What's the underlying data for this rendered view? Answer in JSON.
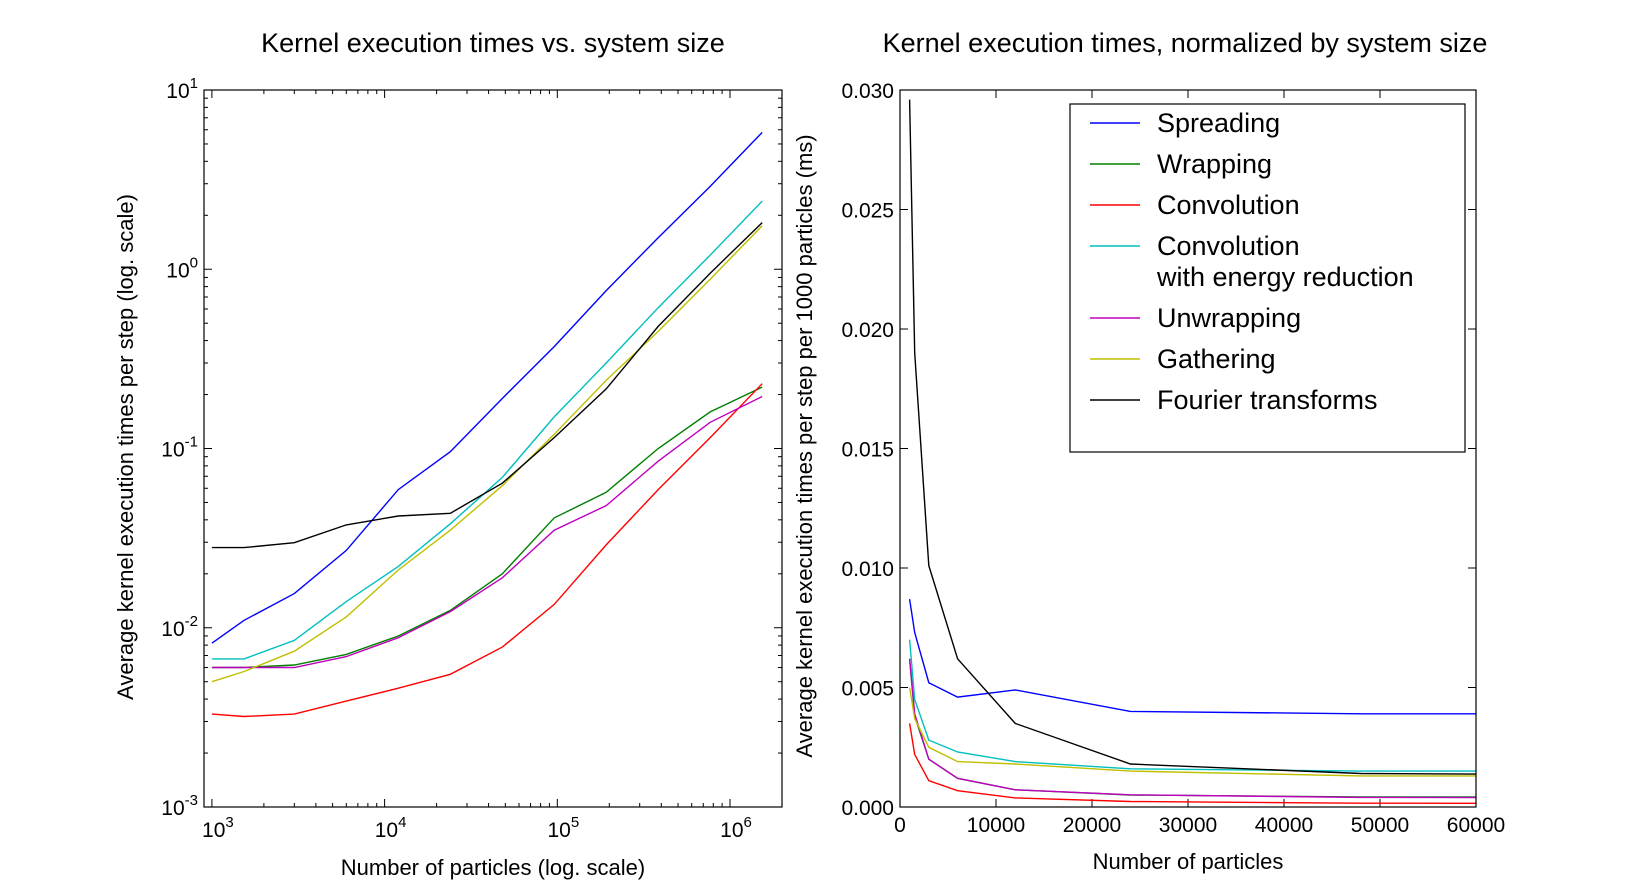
{
  "chart_data": [
    {
      "type": "line",
      "title": "Kernel execution times vs. system size",
      "xlabel": "Number of particles (log. scale)",
      "ylabel": "Average kernel execution times per step (log. scale)",
      "xscale": "log",
      "yscale": "log",
      "xlim": [
        900,
        2000000
      ],
      "ylim": [
        0.001,
        10
      ],
      "xticks": [
        {
          "value": 1000,
          "base": "10",
          "exp": "3"
        },
        {
          "value": 10000,
          "base": "10",
          "exp": "4"
        },
        {
          "value": 100000,
          "base": "10",
          "exp": "5"
        },
        {
          "value": 1000000,
          "base": "10",
          "exp": "6"
        }
      ],
      "yticks": [
        {
          "value": 0.001,
          "base": "10",
          "exp": "-3"
        },
        {
          "value": 0.01,
          "base": "10",
          "exp": "-2"
        },
        {
          "value": 0.1,
          "base": "10",
          "exp": "-1"
        },
        {
          "value": 1,
          "base": "10",
          "exp": "0"
        },
        {
          "value": 10,
          "base": "10",
          "exp": "1"
        }
      ],
      "grid": false,
      "legend": "none",
      "x": [
        1000,
        1536,
        3000,
        6000,
        12000,
        24000,
        48000,
        96000,
        192000,
        384000,
        768000,
        1536000
      ],
      "series": [
        {
          "name": "Spreading",
          "color": "#0000ff",
          "values": [
            0.0082,
            0.011,
            0.0155,
            0.027,
            0.059,
            0.096,
            0.19,
            0.37,
            0.76,
            1.5,
            2.9,
            5.8
          ]
        },
        {
          "name": "Wrapping",
          "color": "#008000",
          "values": [
            0.006,
            0.006,
            0.0062,
            0.0071,
            0.009,
            0.0125,
            0.02,
            0.041,
            0.057,
            0.1,
            0.16,
            0.22
          ]
        },
        {
          "name": "Convolution",
          "color": "#ff0000",
          "values": [
            0.0033,
            0.0032,
            0.0033,
            0.0039,
            0.0046,
            0.0055,
            0.0078,
            0.0135,
            0.029,
            0.059,
            0.115,
            0.23
          ]
        },
        {
          "name": "Convolution with energy reduction",
          "color": "#00bfbf",
          "values": [
            0.0067,
            0.0067,
            0.0085,
            0.014,
            0.022,
            0.038,
            0.069,
            0.15,
            0.3,
            0.61,
            1.2,
            2.4
          ]
        },
        {
          "name": "Unwrapping",
          "color": "#bf00bf",
          "values": [
            0.006,
            0.006,
            0.006,
            0.0069,
            0.0088,
            0.0123,
            0.019,
            0.035,
            0.048,
            0.085,
            0.14,
            0.195
          ]
        },
        {
          "name": "Gathering",
          "color": "#bfbf00",
          "values": [
            0.005,
            0.0057,
            0.0074,
            0.0115,
            0.021,
            0.035,
            0.062,
            0.12,
            0.24,
            0.45,
            0.88,
            1.75
          ]
        },
        {
          "name": "Fourier transforms",
          "color": "#000000",
          "values": [
            0.028,
            0.028,
            0.0298,
            0.0375,
            0.042,
            0.0435,
            0.064,
            0.115,
            0.215,
            0.48,
            0.95,
            1.82
          ]
        }
      ]
    },
    {
      "type": "line",
      "title": "Kernel execution times, normalized by system size",
      "xlabel": "Number of particles",
      "ylabel": "Average kernel execution times per step per 1000 particles (ms)",
      "xlim": [
        0,
        60000
      ],
      "ylim": [
        0,
        0.03
      ],
      "xticks": [
        "0",
        "10000",
        "20000",
        "30000",
        "40000",
        "50000",
        "60000"
      ],
      "yticks": [
        "0.000",
        "0.005",
        "0.010",
        "0.015",
        "0.020",
        "0.025",
        "0.030"
      ],
      "grid": false,
      "legend": "top-right",
      "x": [
        1000,
        1536,
        3000,
        6000,
        12000,
        24000,
        48000,
        96000
      ],
      "series": [
        {
          "name": "Spreading",
          "label_lines": [
            "Spreading"
          ],
          "color": "#0000ff",
          "values": [
            0.0087,
            0.0073,
            0.0052,
            0.0046,
            0.0049,
            0.004,
            0.0039,
            0.0039
          ]
        },
        {
          "name": "Wrapping",
          "label_lines": [
            "Wrapping"
          ],
          "color": "#008000",
          "values": [
            0.0062,
            0.0038,
            0.002,
            0.0012,
            0.00072,
            0.0005,
            0.00042,
            0.00042
          ]
        },
        {
          "name": "Convolution",
          "label_lines": [
            "Convolution"
          ],
          "color": "#ff0000",
          "values": [
            0.0035,
            0.0022,
            0.0011,
            0.00068,
            0.00038,
            0.00023,
            0.00016,
            0.00014
          ]
        },
        {
          "name": "Convolution with energy reduction",
          "label_lines": [
            "Convolution",
            "with energy reduction"
          ],
          "color": "#00bfbf",
          "values": [
            0.007,
            0.0045,
            0.0028,
            0.0023,
            0.0019,
            0.0016,
            0.0015,
            0.0015
          ]
        },
        {
          "name": "Unwrapping",
          "label_lines": [
            "Unwrapping"
          ],
          "color": "#bf00bf",
          "values": [
            0.0062,
            0.0039,
            0.002,
            0.0012,
            0.00072,
            0.00051,
            0.0004,
            0.00037
          ]
        },
        {
          "name": "Gathering",
          "label_lines": [
            "Gathering"
          ],
          "color": "#bfbf00",
          "values": [
            0.005,
            0.0037,
            0.0025,
            0.0019,
            0.0018,
            0.0015,
            0.0013,
            0.0013
          ]
        },
        {
          "name": "Fourier transforms",
          "label_lines": [
            "Fourier transforms"
          ],
          "color": "#000000",
          "values": [
            0.0296,
            0.019,
            0.0101,
            0.0062,
            0.0035,
            0.0018,
            0.0014,
            0.0013
          ]
        }
      ]
    }
  ]
}
